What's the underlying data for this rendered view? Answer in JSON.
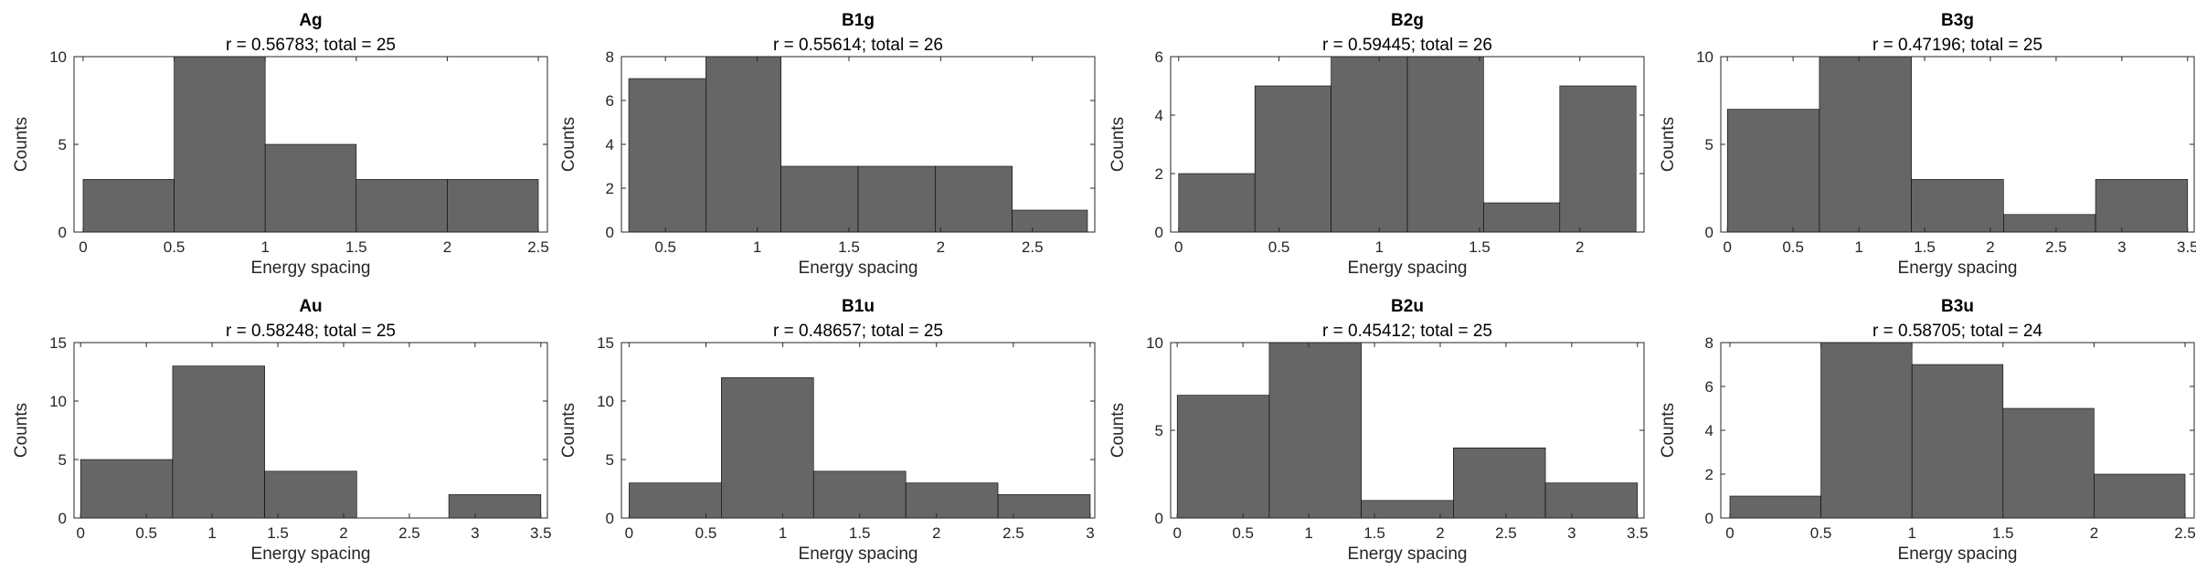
{
  "chart_data": [
    {
      "type": "bar",
      "title": "Ag",
      "subtitle": "r = 0.56783; total = 25",
      "xlabel": "Energy spacing",
      "ylabel": "Counts",
      "edges": [
        0,
        0.5,
        1,
        1.5,
        2,
        2.5
      ],
      "counts": [
        3,
        10,
        5,
        3,
        3
      ],
      "xlim": [
        -0.05,
        2.55
      ],
      "ylim": [
        0,
        10
      ],
      "xticks": [
        0,
        0.5,
        1,
        1.5,
        2,
        2.5
      ],
      "xtick_labels": [
        "0",
        "0.5",
        "1",
        "1.5",
        "2",
        "2.5"
      ],
      "yticks": [
        0,
        5,
        10
      ],
      "ytick_labels": [
        "0",
        "5",
        "10"
      ]
    },
    {
      "type": "bar",
      "title": "B1g",
      "subtitle": "r = 0.55614; total = 26",
      "xlabel": "Energy spacing",
      "ylabel": "Counts",
      "edges": [
        0.3,
        0.72,
        1.13,
        1.55,
        1.97,
        2.39,
        2.8
      ],
      "counts": [
        7,
        8,
        3,
        3,
        3,
        1
      ],
      "xlim": [
        0.26,
        2.84
      ],
      "ylim": [
        0,
        8
      ],
      "xticks": [
        0.5,
        1,
        1.5,
        2,
        2.5
      ],
      "xtick_labels": [
        "0.5",
        "1",
        "1.5",
        "2",
        "2.5"
      ],
      "yticks": [
        0,
        2,
        4,
        6,
        8
      ],
      "ytick_labels": [
        "0",
        "2",
        "4",
        "6",
        "8"
      ]
    },
    {
      "type": "bar",
      "title": "B2g",
      "subtitle": "r = 0.59445; total = 26",
      "xlabel": "Energy spacing",
      "ylabel": "Counts",
      "edges": [
        0,
        0.38,
        0.76,
        1.14,
        1.52,
        1.9,
        2.28
      ],
      "counts": [
        2,
        5,
        6,
        6,
        1,
        5
      ],
      "xlim": [
        -0.04,
        2.32
      ],
      "ylim": [
        0,
        6
      ],
      "xticks": [
        0,
        0.5,
        1,
        1.5,
        2
      ],
      "xtick_labels": [
        "0",
        "0.5",
        "1",
        "1.5",
        "2"
      ],
      "yticks": [
        0,
        2,
        4,
        6
      ],
      "ytick_labels": [
        "0",
        "2",
        "4",
        "6"
      ]
    },
    {
      "type": "bar",
      "title": "B3g",
      "subtitle": "r = 0.47196; total = 25",
      "xlabel": "Energy spacing",
      "ylabel": "Counts",
      "edges": [
        0,
        0.7,
        1.4,
        2.1,
        2.8,
        3.5
      ],
      "counts": [
        7,
        10,
        3,
        1,
        3
      ],
      "xlim": [
        -0.05,
        3.55
      ],
      "ylim": [
        0,
        10
      ],
      "xticks": [
        0,
        0.5,
        1,
        1.5,
        2,
        2.5,
        3,
        3.5
      ],
      "xtick_labels": [
        "0",
        "0.5",
        "1",
        "1.5",
        "2",
        "2.5",
        "3",
        "3.5"
      ],
      "yticks": [
        0,
        5,
        10
      ],
      "ytick_labels": [
        "0",
        "5",
        "10"
      ]
    },
    {
      "type": "bar",
      "title": "Au",
      "subtitle": "r = 0.58248; total = 25",
      "xlabel": "Energy spacing",
      "ylabel": "Counts",
      "edges": [
        0,
        0.7,
        1.4,
        2.1,
        2.8,
        3.5
      ],
      "counts": [
        5,
        13,
        4,
        0,
        2
      ],
      "xlim": [
        -0.05,
        3.55
      ],
      "ylim": [
        0,
        15
      ],
      "xticks": [
        0,
        0.5,
        1,
        1.5,
        2,
        2.5,
        3,
        3.5
      ],
      "xtick_labels": [
        "0",
        "0.5",
        "1",
        "1.5",
        "2",
        "2.5",
        "3",
        "3.5"
      ],
      "yticks": [
        0,
        5,
        10,
        15
      ],
      "ytick_labels": [
        "0",
        "5",
        "10",
        "15"
      ]
    },
    {
      "type": "bar",
      "title": "B1u",
      "subtitle": "r = 0.48657; total = 25",
      "xlabel": "Energy spacing",
      "ylabel": "Counts",
      "edges": [
        0,
        0.6,
        1.2,
        1.8,
        2.4,
        3
      ],
      "counts": [
        3,
        12,
        4,
        3,
        2
      ],
      "xlim": [
        -0.05,
        3.03
      ],
      "ylim": [
        0,
        15
      ],
      "xticks": [
        0,
        0.5,
        1,
        1.5,
        2,
        2.5,
        3
      ],
      "xtick_labels": [
        "0",
        "0.5",
        "1",
        "1.5",
        "2",
        "2.5",
        "3"
      ],
      "yticks": [
        0,
        5,
        10,
        15
      ],
      "ytick_labels": [
        "0",
        "5",
        "10",
        "15"
      ]
    },
    {
      "type": "bar",
      "title": "B2u",
      "subtitle": "r = 0.45412; total = 25",
      "xlabel": "Energy spacing",
      "ylabel": "Counts",
      "edges": [
        0,
        0.7,
        1.4,
        2.1,
        2.8,
        3.5
      ],
      "counts": [
        7,
        10,
        1,
        4,
        2
      ],
      "xlim": [
        -0.05,
        3.55
      ],
      "ylim": [
        0,
        10
      ],
      "xticks": [
        0,
        0.5,
        1,
        1.5,
        2,
        2.5,
        3,
        3.5
      ],
      "xtick_labels": [
        "0",
        "0.5",
        "1",
        "1.5",
        "2",
        "2.5",
        "3",
        "3.5"
      ],
      "yticks": [
        0,
        5,
        10
      ],
      "ytick_labels": [
        "0",
        "5",
        "10"
      ]
    },
    {
      "type": "bar",
      "title": "B3u",
      "subtitle": "r = 0.58705; total = 24",
      "xlabel": "Energy spacing",
      "ylabel": "Counts",
      "edges": [
        0,
        0.5,
        1,
        1.5,
        2,
        2.5
      ],
      "counts": [
        1,
        8,
        7,
        5,
        2
      ],
      "xlim": [
        -0.05,
        2.55
      ],
      "ylim": [
        0,
        8
      ],
      "xticks": [
        0,
        0.5,
        1,
        1.5,
        2,
        2.5
      ],
      "xtick_labels": [
        "0",
        "0.5",
        "1",
        "1.5",
        "2",
        "2.5"
      ],
      "yticks": [
        0,
        2,
        4,
        6,
        8
      ],
      "ytick_labels": [
        "0",
        "2",
        "4",
        "6",
        "8"
      ]
    }
  ]
}
